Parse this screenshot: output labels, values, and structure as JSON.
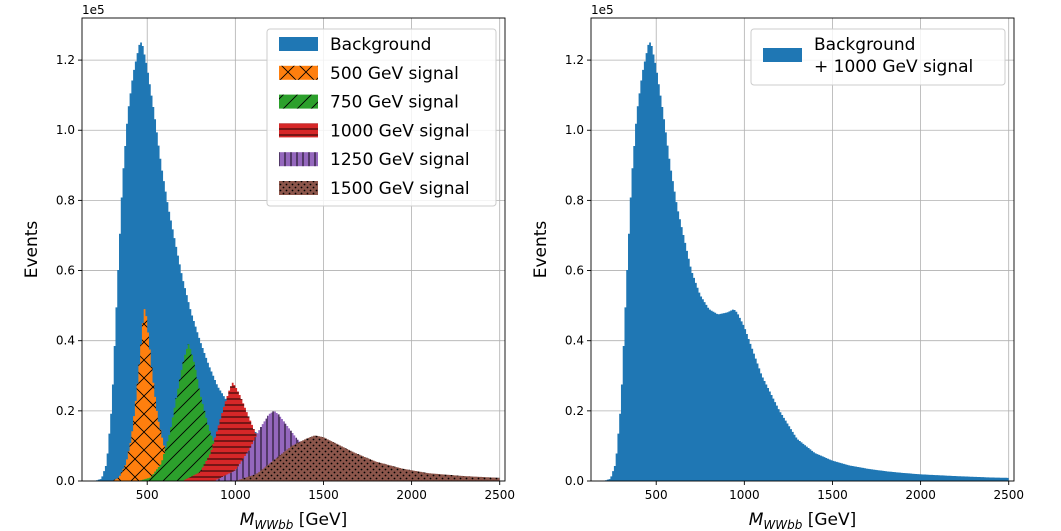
{
  "chart_data": [
    {
      "type": "histogram",
      "xlabel": "M",
      "xlabel_sub": "WWbb",
      "xlabel_unit": " [GeV]",
      "ylabel": "Events",
      "yscale_label": "1e5",
      "xlim": [
        130,
        2530
      ],
      "ylim": [
        0,
        1.32
      ],
      "xticks": [
        500,
        1000,
        1500,
        2000,
        2500
      ],
      "yticks": [
        0.0,
        0.2,
        0.4,
        0.6,
        0.8,
        1.0,
        1.2
      ],
      "grid": true,
      "legend_position": "top-right",
      "bin_range": [
        200,
        2500
      ],
      "bin_width": 10,
      "series": [
        {
          "name": "Background",
          "color": "#1f77b4",
          "hatch": "none",
          "points": [
            [
              200,
              0
            ],
            [
              240,
              0.006
            ],
            [
              270,
              0.05
            ],
            [
              300,
              0.22
            ],
            [
              330,
              0.55
            ],
            [
              360,
              0.86
            ],
            [
              390,
              1.05
            ],
            [
              420,
              1.16
            ],
            [
              445,
              1.22
            ],
            [
              460,
              1.255
            ],
            [
              475,
              1.24
            ],
            [
              500,
              1.18
            ],
            [
              540,
              1.05
            ],
            [
              580,
              0.9
            ],
            [
              620,
              0.78
            ],
            [
              660,
              0.68
            ],
            [
              700,
              0.58
            ],
            [
              750,
              0.48
            ],
            [
              800,
              0.4
            ],
            [
              850,
              0.33
            ],
            [
              900,
              0.27
            ],
            [
              1000,
              0.19
            ],
            [
              1100,
              0.145
            ],
            [
              1200,
              0.11
            ],
            [
              1300,
              0.085
            ],
            [
              1400,
              0.067
            ],
            [
              1500,
              0.052
            ],
            [
              1600,
              0.042
            ],
            [
              1700,
              0.034
            ],
            [
              1800,
              0.028
            ],
            [
              1900,
              0.023
            ],
            [
              2000,
              0.019
            ],
            [
              2200,
              0.014
            ],
            [
              2400,
              0.01
            ],
            [
              2500,
              0.009
            ]
          ]
        },
        {
          "name": "500 GeV signal",
          "color": "#ff7f0e",
          "hatch": "x",
          "points": [
            [
              300,
              0
            ],
            [
              340,
              0.01
            ],
            [
              380,
              0.05
            ],
            [
              410,
              0.12
            ],
            [
              440,
              0.25
            ],
            [
              460,
              0.36
            ],
            [
              475,
              0.45
            ],
            [
              485,
              0.49
            ],
            [
              495,
              0.47
            ],
            [
              510,
              0.4
            ],
            [
              530,
              0.3
            ],
            [
              560,
              0.18
            ],
            [
              600,
              0.09
            ],
            [
              650,
              0.04
            ],
            [
              700,
              0.015
            ],
            [
              760,
              0.004
            ],
            [
              820,
              0
            ]
          ]
        },
        {
          "name": "750 GeV signal",
          "color": "#2ca02c",
          "hatch": "/",
          "points": [
            [
              450,
              0
            ],
            [
              520,
              0.01
            ],
            [
              580,
              0.05
            ],
            [
              630,
              0.14
            ],
            [
              670,
              0.25
            ],
            [
              700,
              0.33
            ],
            [
              720,
              0.37
            ],
            [
              735,
              0.39
            ],
            [
              750,
              0.37
            ],
            [
              770,
              0.33
            ],
            [
              800,
              0.25
            ],
            [
              850,
              0.15
            ],
            [
              900,
              0.08
            ],
            [
              950,
              0.04
            ],
            [
              1000,
              0.02
            ],
            [
              1100,
              0.005
            ],
            [
              1150,
              0
            ]
          ]
        },
        {
          "name": "1000 GeV signal",
          "color": "#d62728",
          "hatch": "-",
          "points": [
            [
              700,
              0
            ],
            [
              800,
              0.025
            ],
            [
              860,
              0.08
            ],
            [
              900,
              0.15
            ],
            [
              940,
              0.22
            ],
            [
              970,
              0.265
            ],
            [
              985,
              0.28
            ],
            [
              1000,
              0.27
            ],
            [
              1030,
              0.24
            ],
            [
              1070,
              0.19
            ],
            [
              1120,
              0.13
            ],
            [
              1200,
              0.07
            ],
            [
              1300,
              0.03
            ],
            [
              1400,
              0.012
            ],
            [
              1500,
              0.004
            ],
            [
              1600,
              0
            ]
          ]
        },
        {
          "name": "1250 GeV signal",
          "color": "#9467bd",
          "hatch": "|",
          "points": [
            [
              880,
              0
            ],
            [
              1000,
              0.03
            ],
            [
              1080,
              0.09
            ],
            [
              1140,
              0.15
            ],
            [
              1190,
              0.19
            ],
            [
              1220,
              0.2
            ],
            [
              1245,
              0.19
            ],
            [
              1290,
              0.16
            ],
            [
              1350,
              0.12
            ],
            [
              1450,
              0.07
            ],
            [
              1550,
              0.035
            ],
            [
              1700,
              0.012
            ],
            [
              1850,
              0.004
            ],
            [
              2000,
              0
            ]
          ]
        },
        {
          "name": "1500 GeV signal",
          "color": "#8c564b",
          "hatch": ".",
          "points": [
            [
              1000,
              0
            ],
            [
              1120,
              0.02
            ],
            [
              1220,
              0.06
            ],
            [
              1320,
              0.1
            ],
            [
              1400,
              0.12
            ],
            [
              1450,
              0.13
            ],
            [
              1500,
              0.125
            ],
            [
              1580,
              0.105
            ],
            [
              1680,
              0.08
            ],
            [
              1800,
              0.055
            ],
            [
              1950,
              0.035
            ],
            [
              2100,
              0.022
            ],
            [
              2300,
              0.014
            ],
            [
              2500,
              0.009
            ]
          ]
        }
      ]
    },
    {
      "type": "histogram",
      "xlabel": "M",
      "xlabel_sub": "WWbb",
      "xlabel_unit": " [GeV]",
      "ylabel": "Events",
      "yscale_label": "1e5",
      "xlim": [
        130,
        2530
      ],
      "ylim": [
        0,
        1.32
      ],
      "xticks": [
        500,
        1000,
        1500,
        2000,
        2500
      ],
      "yticks": [
        0.0,
        0.2,
        0.4,
        0.6,
        0.8,
        1.0,
        1.2
      ],
      "grid": true,
      "legend_position": "top-right",
      "bin_range": [
        200,
        2500
      ],
      "bin_width": 10,
      "series": [
        {
          "name": "Background\n+ 1000 GeV signal",
          "color": "#1f77b4",
          "hatch": "none",
          "points": [
            [
              200,
              0
            ],
            [
              240,
              0.006
            ],
            [
              270,
              0.05
            ],
            [
              300,
              0.22
            ],
            [
              330,
              0.55
            ],
            [
              360,
              0.86
            ],
            [
              390,
              1.05
            ],
            [
              420,
              1.16
            ],
            [
              445,
              1.22
            ],
            [
              460,
              1.255
            ],
            [
              475,
              1.24
            ],
            [
              500,
              1.18
            ],
            [
              540,
              1.05
            ],
            [
              580,
              0.9
            ],
            [
              620,
              0.78
            ],
            [
              660,
              0.69
            ],
            [
              700,
              0.6
            ],
            [
              750,
              0.53
            ],
            [
              800,
              0.49
            ],
            [
              850,
              0.475
            ],
            [
              900,
              0.48
            ],
            [
              940,
              0.49
            ],
            [
              960,
              0.48
            ],
            [
              1000,
              0.44
            ],
            [
              1050,
              0.37
            ],
            [
              1100,
              0.3
            ],
            [
              1200,
              0.2
            ],
            [
              1300,
              0.12
            ],
            [
              1400,
              0.08
            ],
            [
              1500,
              0.058
            ],
            [
              1600,
              0.044
            ],
            [
              1700,
              0.035
            ],
            [
              1800,
              0.028
            ],
            [
              1900,
              0.023
            ],
            [
              2000,
              0.019
            ],
            [
              2200,
              0.014
            ],
            [
              2400,
              0.01
            ],
            [
              2500,
              0.009
            ]
          ]
        }
      ]
    }
  ]
}
